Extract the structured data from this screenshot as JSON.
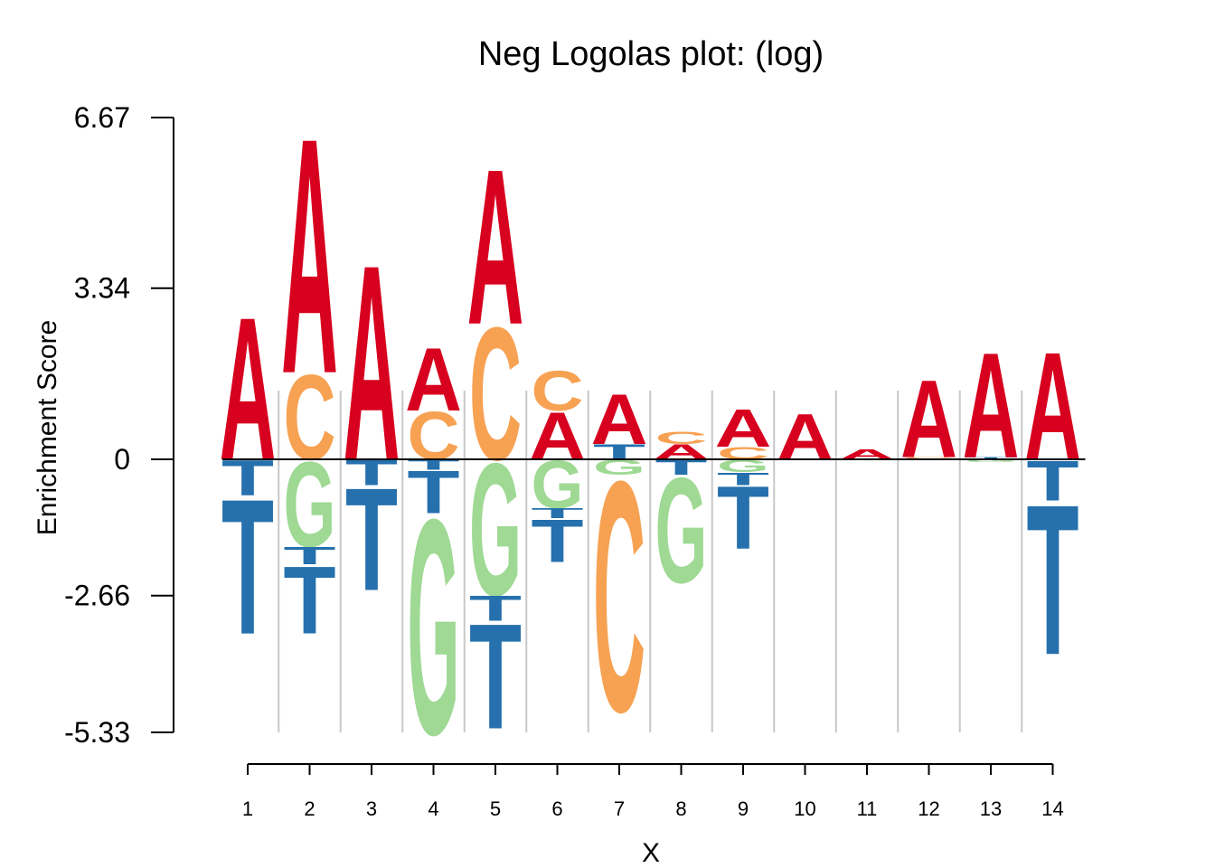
{
  "chart_data": {
    "type": "sequence-logo",
    "title": "Neg Logolas plot: (log)",
    "xlabel": "X",
    "ylabel": "Enrichment Score",
    "ylim": [
      -5.33,
      6.67
    ],
    "yticks": [
      6.67,
      3.34,
      0,
      -2.66,
      -5.33
    ],
    "ytick_labels": [
      "6.67",
      "3.34",
      "0",
      "-2.66",
      "-5.33"
    ],
    "positions": [
      "1",
      "2",
      "3",
      "4",
      "5",
      "6",
      "7",
      "8",
      "9",
      "10",
      "11",
      "12",
      "13",
      "14"
    ],
    "colors": {
      "A": "#d7001e",
      "C": "#f7a152",
      "G": "#9fd994",
      "T": "#2570ad"
    },
    "stacks": [
      {
        "pos": [
          {
            "b": "A",
            "h": 2.85
          }
        ],
        "neg": [
          {
            "b": "T",
            "h": 0.7
          },
          {
            "b": "T",
            "h": 2.7
          }
        ]
      },
      {
        "pos": [
          {
            "b": "C",
            "h": 1.7
          },
          {
            "b": "A",
            "h": 4.7
          }
        ],
        "neg": [
          {
            "b": "G",
            "h": 1.7
          },
          {
            "b": "T",
            "h": 0.35
          },
          {
            "b": "T",
            "h": 1.35
          }
        ]
      },
      {
        "pos": [
          {
            "b": "A",
            "h": 3.9
          }
        ],
        "neg": [
          {
            "b": "T",
            "h": 0.5
          },
          {
            "b": "T",
            "h": 2.05
          }
        ]
      },
      {
        "pos": [
          {
            "b": "C",
            "h": 0.95
          },
          {
            "b": "A",
            "h": 1.25
          }
        ],
        "neg": [
          {
            "b": "T",
            "h": 0.2
          },
          {
            "b": "T",
            "h": 0.85
          },
          {
            "b": "G",
            "h": 4.3
          }
        ]
      },
      {
        "pos": [
          {
            "b": "C",
            "h": 2.65
          },
          {
            "b": "A",
            "h": 3.1
          }
        ],
        "neg": [
          {
            "b": "G",
            "h": 2.65
          },
          {
            "b": "T",
            "h": 0.5
          },
          {
            "b": "T",
            "h": 2.1
          }
        ]
      },
      {
        "pos": [
          {
            "b": "A",
            "h": 0.95
          },
          {
            "b": "C",
            "h": 0.8
          }
        ],
        "neg": [
          {
            "b": "G",
            "h": 0.95
          },
          {
            "b": "T",
            "h": 0.2
          },
          {
            "b": "T",
            "h": 0.85
          }
        ]
      },
      {
        "pos": [
          {
            "b": "T",
            "h": 0.3
          },
          {
            "b": "A",
            "h": 1.0
          }
        ],
        "neg": [
          {
            "b": "G",
            "h": 0.3
          },
          {
            "b": "C",
            "h": 4.6
          }
        ]
      },
      {
        "pos": [
          {
            "b": "A",
            "h": 0.3
          },
          {
            "b": "C",
            "h": 0.25
          }
        ],
        "neg": [
          {
            "b": "T",
            "h": 0.3
          },
          {
            "b": "G",
            "h": 2.1
          }
        ]
      },
      {
        "pos": [
          {
            "b": "C",
            "h": 0.25
          },
          {
            "b": "A",
            "h": 0.75
          }
        ],
        "neg": [
          {
            "b": "G",
            "h": 0.25
          },
          {
            "b": "T",
            "h": 0.25
          },
          {
            "b": "T",
            "h": 1.25
          }
        ]
      },
      {
        "pos": [
          {
            "b": "A",
            "h": 0.92
          }
        ],
        "neg": []
      },
      {
        "pos": [
          {
            "b": "A",
            "h": 0.2
          }
        ],
        "neg": []
      },
      {
        "pos": [
          {
            "b": "C",
            "h": 0.04
          },
          {
            "b": "A",
            "h": 1.55
          }
        ],
        "neg": []
      },
      {
        "pos": [
          {
            "b": "T",
            "h": 0.04
          },
          {
            "b": "A",
            "h": 2.1
          }
        ],
        "neg": [
          {
            "b": "G",
            "h": 0.05
          }
        ]
      },
      {
        "pos": [
          {
            "b": "A",
            "h": 2.15
          }
        ],
        "neg": [
          {
            "b": "T",
            "h": 0.8
          },
          {
            "b": "T",
            "h": 3.0
          }
        ]
      }
    ]
  }
}
